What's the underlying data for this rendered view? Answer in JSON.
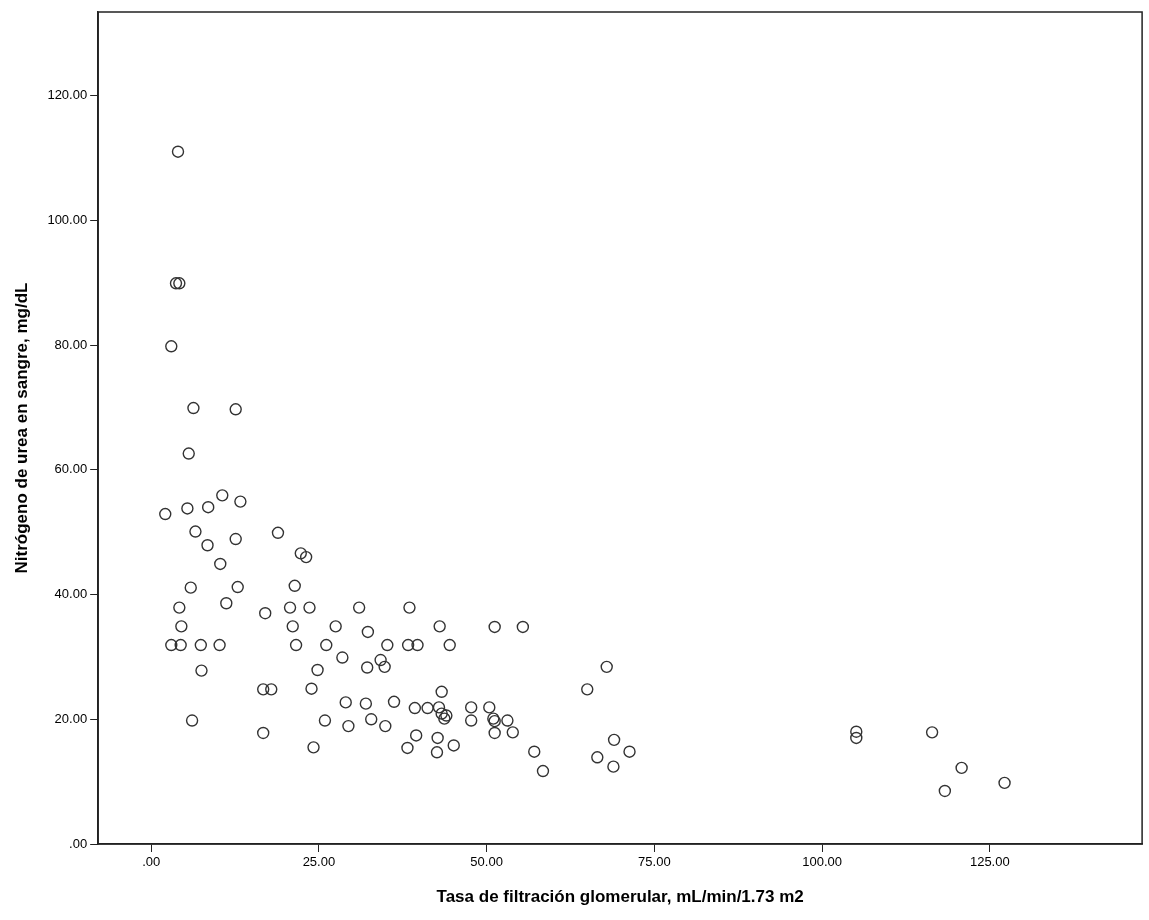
{
  "chart_data": {
    "type": "scatter",
    "xlabel": "Tasa de filtración glomerular, mL/min/1.73 m2",
    "ylabel": "Nitrógeno de urea en sangre, mg/dL",
    "xlim": [
      -7.9,
      147.7
    ],
    "ylim": [
      0,
      133.4
    ],
    "xticks": [
      {
        "value": 0,
        "label": ".00"
      },
      {
        "value": 25,
        "label": "25.00"
      },
      {
        "value": 50,
        "label": "50.00"
      },
      {
        "value": 75,
        "label": "75.00"
      },
      {
        "value": 100,
        "label": "100.00"
      },
      {
        "value": 125,
        "label": "125.00"
      }
    ],
    "yticks": [
      {
        "value": 0,
        "label": ".00"
      },
      {
        "value": 20,
        "label": "20.00"
      },
      {
        "value": 40,
        "label": "40.00"
      },
      {
        "value": 60,
        "label": "60.00"
      },
      {
        "value": 80,
        "label": "80.00"
      },
      {
        "value": 100,
        "label": "100.00"
      },
      {
        "value": 120,
        "label": "120.00"
      }
    ],
    "grid": false,
    "legend": false,
    "marker": "circle",
    "series": [
      {
        "color": "#333333",
        "x": [
          4.0,
          3.7,
          4.2,
          3.0,
          6.3,
          12.6,
          5.6,
          2.1,
          5.4,
          8.5,
          10.6,
          13.3,
          6.6,
          8.4,
          12.6,
          18.9,
          22.3,
          23.1,
          10.3,
          5.9,
          12.9,
          21.4,
          11.2,
          4.2,
          17.0,
          20.7,
          23.6,
          31.0,
          38.5,
          4.5,
          21.1,
          27.5,
          32.3,
          43.0,
          3.0,
          4.4,
          7.4,
          10.2,
          21.6,
          26.1,
          35.2,
          38.3,
          39.7,
          44.5,
          28.5,
          34.2,
          34.8,
          32.2,
          7.5,
          24.8,
          16.7,
          17.9,
          23.9,
          43.3,
          29.0,
          32.0,
          36.2,
          39.3,
          41.2,
          42.9,
          43.3,
          44.0,
          43.7,
          6.1,
          25.9,
          32.8,
          29.4,
          34.9,
          16.7,
          39.5,
          42.7,
          45.1,
          38.2,
          42.6,
          24.2,
          51.2,
          55.4,
          67.9,
          65.0,
          47.7,
          50.4,
          47.7,
          51.0,
          51.2,
          53.1,
          51.2,
          53.9,
          57.1,
          58.4,
          69.0,
          66.5,
          68.9,
          71.3,
          105.1,
          105.1,
          116.4,
          120.8,
          118.3,
          127.2
        ],
        "values": [
          111.0,
          89.9,
          89.9,
          79.8,
          69.9,
          69.7,
          62.6,
          52.9,
          53.8,
          54.0,
          55.9,
          54.9,
          50.1,
          47.9,
          48.9,
          49.9,
          46.6,
          46.0,
          44.9,
          41.1,
          41.2,
          41.4,
          38.6,
          37.9,
          37.0,
          37.9,
          37.9,
          37.9,
          37.9,
          34.9,
          34.9,
          34.9,
          34.0,
          34.9,
          31.9,
          31.9,
          31.9,
          31.9,
          31.9,
          31.9,
          31.9,
          31.9,
          31.9,
          31.9,
          29.9,
          29.5,
          28.4,
          28.3,
          27.8,
          27.9,
          24.8,
          24.8,
          24.9,
          24.4,
          22.7,
          22.5,
          22.8,
          21.8,
          21.8,
          21.9,
          20.9,
          20.6,
          20.1,
          19.8,
          19.8,
          20.0,
          18.9,
          18.9,
          17.8,
          17.4,
          17.0,
          15.8,
          15.4,
          14.7,
          15.5,
          34.8,
          34.8,
          28.4,
          24.8,
          21.9,
          21.9,
          19.8,
          20.1,
          19.7,
          19.8,
          17.8,
          17.9,
          14.8,
          11.7,
          16.7,
          13.9,
          12.4,
          14.8,
          18.0,
          17.0,
          17.9,
          12.2,
          8.5,
          9.8
        ]
      }
    ]
  }
}
